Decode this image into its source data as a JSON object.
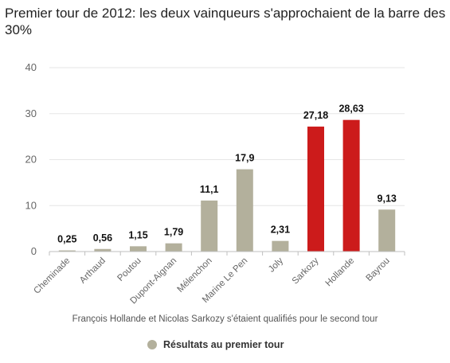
{
  "chart_data": {
    "type": "bar",
    "title": "Premier tour de 2012: les deux vainqueurs s'approchaient de la barre des 30%",
    "categories": [
      "Cheminade",
      "Arthaud",
      "Poutou",
      "Dupont-Aignan",
      "Mélenchon",
      "Marine Le Pen",
      "Joly",
      "Sarkozy",
      "Hollande",
      "Bayrou"
    ],
    "values": [
      0.25,
      0.56,
      1.15,
      1.79,
      11.1,
      17.9,
      2.31,
      27.18,
      28.63,
      9.13
    ],
    "data_labels": [
      "0,25",
      "0,56",
      "1,15",
      "1,79",
      "11,1",
      "17,9",
      "2,31",
      "27,18",
      "28,63",
      "9,13"
    ],
    "highlighted": [
      false,
      false,
      false,
      false,
      false,
      false,
      false,
      true,
      true,
      false
    ],
    "ylim": [
      0,
      40
    ],
    "yticks": [
      0,
      10,
      20,
      30,
      40
    ],
    "grid": true,
    "caption": "François Hollande et Nicolas Sarkozy s'étaient qualifiés pour le second tour",
    "legend": {
      "label": "Résultats au premier tour",
      "placement": "bottom"
    },
    "colors": {
      "default": "#b3b09c",
      "highlight": "#cc1b1b",
      "grid": "#e6e6e6"
    }
  }
}
